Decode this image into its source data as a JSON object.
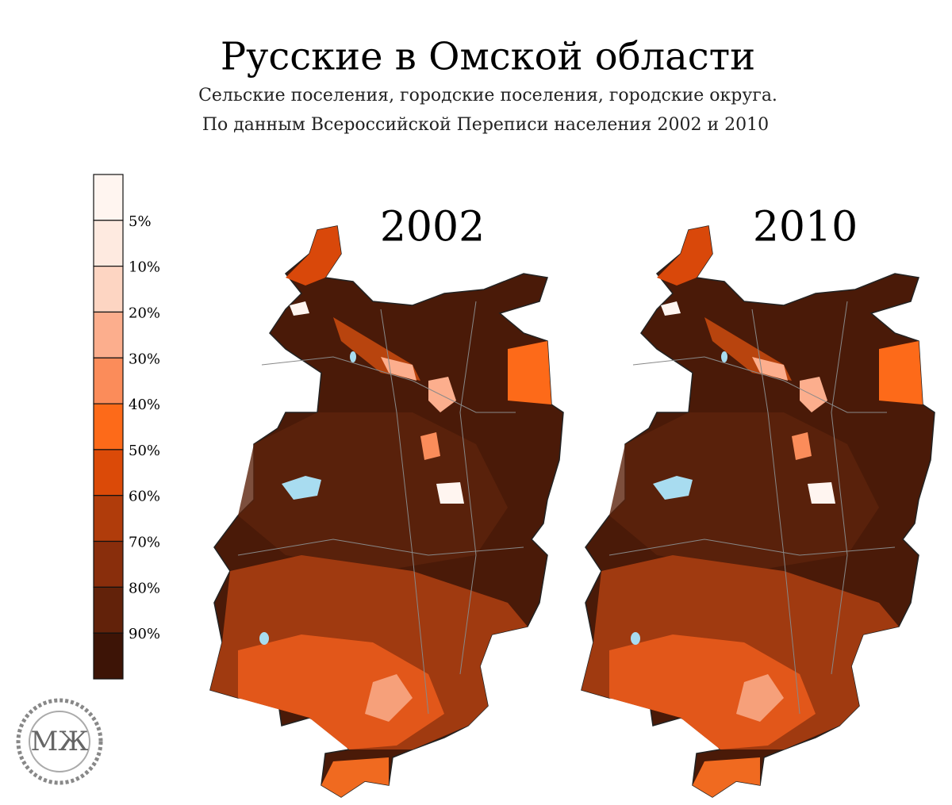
{
  "header": {
    "title": "Русские в Омской области",
    "subtitle_1": "Сельские поселения, городские поселения, городские округа.",
    "subtitle_2": "По данным Всероссийской Переписи населения  2002 и 2010"
  },
  "legend": {
    "labels": [
      "5%",
      "10%",
      "20%",
      "30%",
      "40%",
      "50%",
      "60%",
      "70%",
      "80%",
      "90%"
    ],
    "colors": [
      "#fff5f0",
      "#feeae0",
      "#fdd5c2",
      "#fcae8d",
      "#fb8c5a",
      "#fd6a19",
      "#db4a08",
      "#b03c0b",
      "#892e0c",
      "#62220a",
      "#3d1406"
    ]
  },
  "maps": [
    {
      "year_label": "2002"
    },
    {
      "year_label": "2010"
    }
  ],
  "logo": "МЖ"
}
